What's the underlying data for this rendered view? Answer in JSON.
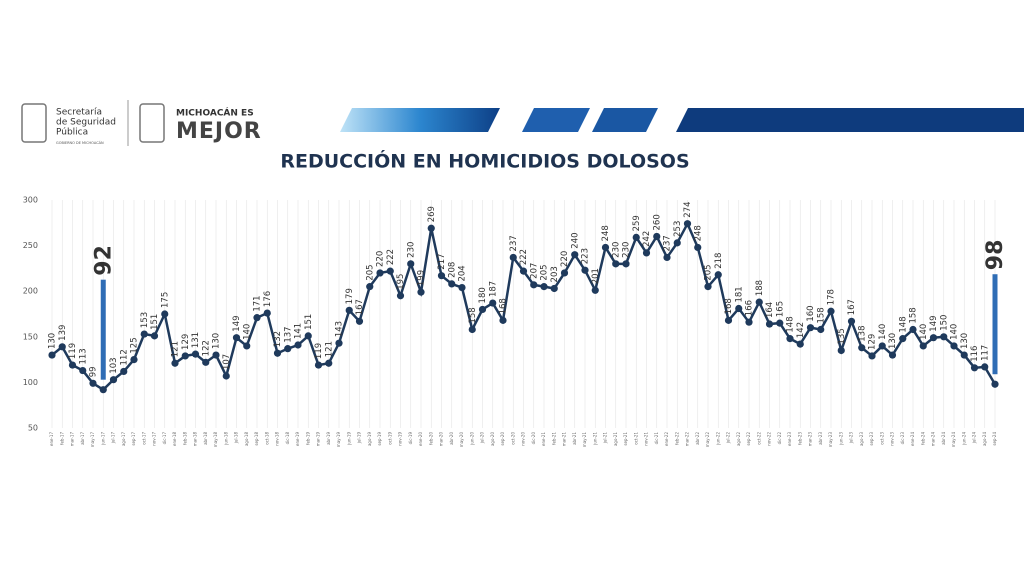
{
  "header": {
    "agency_lines": [
      "Secretaría",
      "de Seguridad",
      "Pública"
    ],
    "agency_sub": "GOBIERNO DE MICHOACÁN",
    "brand_top": "MICHOACÁN ES",
    "brand_main": "MEJOR"
  },
  "chart_data": {
    "type": "line",
    "title": "REDUCCIÓN EN HOMICIDIOS DOLOSOS",
    "categories": [
      "ene-17",
      "feb-17",
      "mar-17",
      "abr-17",
      "may-17",
      "jun-17",
      "jul-17",
      "ago-17",
      "sep-17",
      "oct-17",
      "nov-17",
      "dic-17",
      "ene-18",
      "feb-18",
      "mar-18",
      "abr-18",
      "may-18",
      "jun-18",
      "jul-18",
      "ago-18",
      "sep-18",
      "oct-18",
      "nov-18",
      "dic-18",
      "ene-19",
      "feb-19",
      "mar-19",
      "abr-19",
      "may-19",
      "jun-19",
      "jul-19",
      "ago-19",
      "sep-19",
      "oct-19",
      "nov-19",
      "dic-19",
      "ene-20",
      "feb-20",
      "mar-20",
      "abr-20",
      "may-20",
      "jun-20",
      "jul-20",
      "ago-20",
      "sep-20",
      "oct-20",
      "nov-20",
      "dic-20",
      "ene-21",
      "feb-21",
      "mar-21",
      "abr-21",
      "may-21",
      "jun-21",
      "jul-21",
      "ago-21",
      "sep-21",
      "oct-21",
      "nov-21",
      "dic-21",
      "ene-22",
      "feb-22",
      "mar-22",
      "abr-22",
      "may-22",
      "jun-22",
      "jul-22",
      "ago-22",
      "sep-22",
      "oct-22",
      "nov-22",
      "dic-22",
      "ene-23",
      "feb-23",
      "mar-23",
      "abr-23",
      "may-23",
      "jun-23",
      "jul-23",
      "ago-23",
      "sep-23",
      "oct-23",
      "nov-23",
      "dic-23",
      "ene-24",
      "feb-24",
      "mar-24",
      "abr-24",
      "may-24",
      "jun-24",
      "jul-24",
      "ago-24",
      "sep-24"
    ],
    "values": [
      130,
      139,
      119,
      113,
      99,
      92,
      103,
      112,
      125,
      153,
      151,
      175,
      121,
      129,
      131,
      122,
      130,
      107,
      149,
      140,
      171,
      176,
      132,
      137,
      141,
      151,
      119,
      121,
      143,
      179,
      167,
      205,
      220,
      222,
      195,
      230,
      199,
      269,
      217,
      208,
      204,
      158,
      180,
      187,
      168,
      237,
      222,
      207,
      205,
      203,
      220,
      240,
      223,
      201,
      248,
      230,
      230,
      259,
      242,
      260,
      237,
      253,
      274,
      248,
      205,
      218,
      168,
      181,
      166,
      188,
      164,
      165,
      148,
      142,
      160,
      158,
      178,
      135,
      167,
      138,
      129,
      140,
      130,
      148,
      158,
      140,
      149,
      150,
      140,
      130,
      116,
      117,
      98
    ],
    "color": "#1f3a5c",
    "highlight_color": "#2f6db5",
    "highlights": [
      {
        "category": "jun-17",
        "label": "92"
      },
      {
        "category": "sep-24",
        "label": "98"
      }
    ],
    "ylim": [
      50,
      300
    ],
    "yticks": [
      50,
      100,
      150,
      200,
      250,
      300
    ],
    "grid": true
  }
}
